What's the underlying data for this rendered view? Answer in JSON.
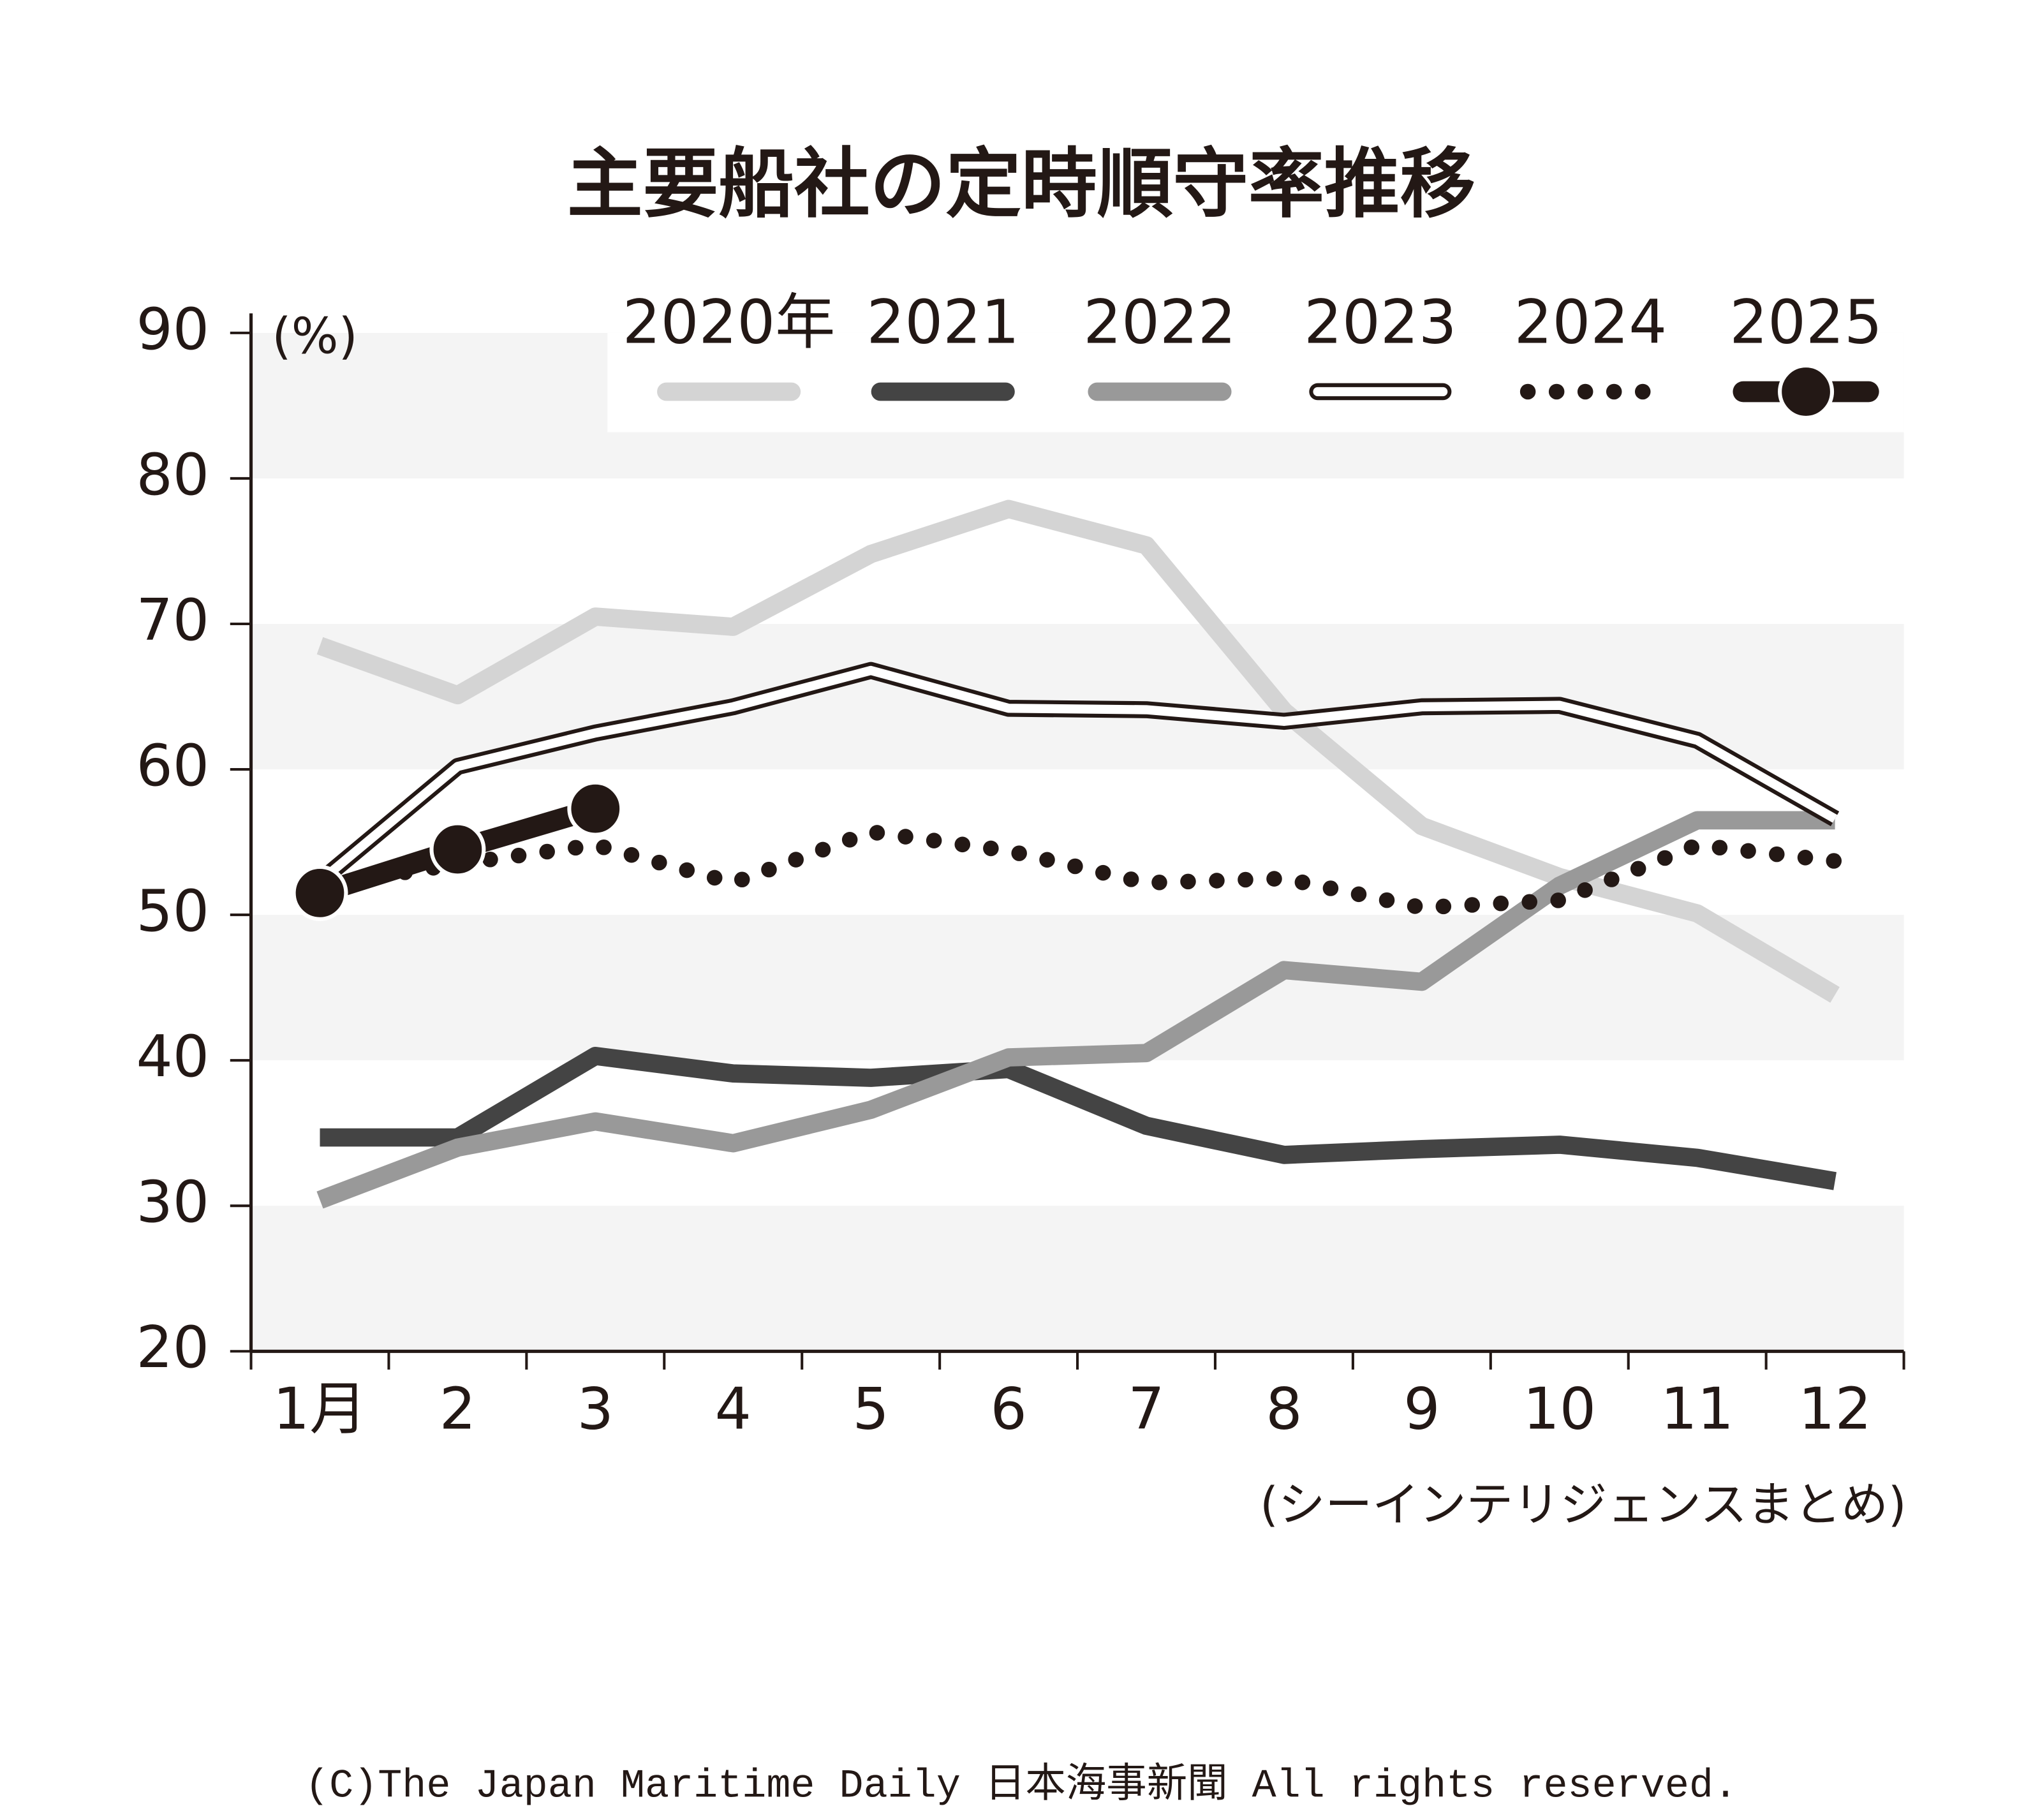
{
  "chart_data": {
    "type": "line",
    "title": "主要船社の定時順守率推移",
    "y_label": "(%)",
    "source": "(シーインテリジェンスまとめ)",
    "copyright": "(C)The Japan Maritime Daily 日本海事新聞 All rights reserved.",
    "categories": [
      "1月",
      "2",
      "3",
      "4",
      "5",
      "6",
      "7",
      "8",
      "9",
      "10",
      "11",
      "12"
    ],
    "series": [
      {
        "name": "2020年",
        "color": "#d4d4d4",
        "style": "solid",
        "values": [
          68.5,
          65.1,
          70.5,
          69.8,
          74.8,
          77.9,
          75.4,
          64,
          56.1,
          52.6,
          50.1,
          44.5
        ]
      },
      {
        "name": "2021",
        "color": "#444444",
        "style": "solid",
        "values": [
          34.7,
          34.7,
          40.3,
          39.1,
          38.8,
          39.4,
          35.5,
          33.5,
          33.9,
          34.2,
          33.3,
          31.7
        ]
      },
      {
        "name": "2022",
        "color": "#999999",
        "style": "solid",
        "values": [
          30.4,
          34,
          35.8,
          34.3,
          36.6,
          40.2,
          40.5,
          46.2,
          45.4,
          52,
          56.5,
          56.5
        ]
      },
      {
        "name": "2023",
        "color": "#231815",
        "style": "double",
        "values": [
          52.3,
          60.2,
          62.5,
          64.3,
          66.8,
          64.2,
          64.1,
          63.3,
          64.3,
          64.4,
          62,
          56.6
        ]
      },
      {
        "name": "2024",
        "color": "#231815",
        "style": "dotted",
        "values": [
          52,
          53.5,
          54.8,
          52.2,
          55.7,
          54.4,
          52.2,
          52.5,
          50.5,
          51,
          54.8,
          53.7
        ]
      },
      {
        "name": "2025",
        "color": "#231815",
        "style": "marker",
        "values": [
          51.5,
          54.5,
          57.3,
          null,
          null,
          null,
          null,
          null,
          null,
          null,
          null,
          null
        ]
      }
    ],
    "ylim": [
      20,
      90
    ],
    "yticks": [
      20,
      30,
      40,
      50,
      60,
      70,
      80,
      90
    ],
    "grid": false,
    "legend": "top-right"
  }
}
